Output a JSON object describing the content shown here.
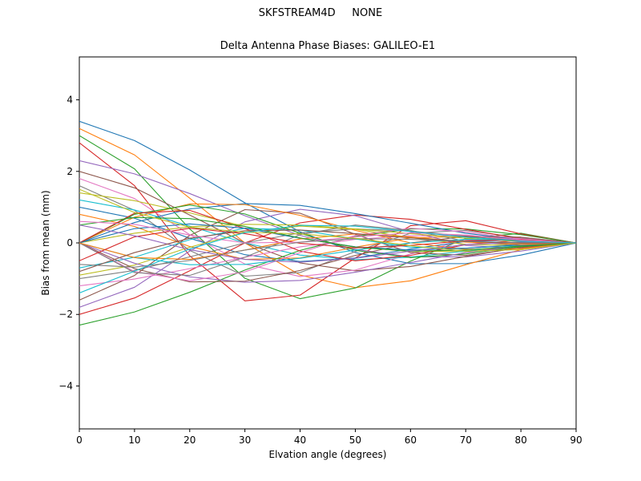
{
  "window": {
    "title": "SKFSTREAM4D     NONE"
  },
  "chart_data": {
    "type": "line",
    "title": "SKFSTREAM4D     NONE",
    "subtitle": "Delta Antenna Phase Biases: GALILEO-E1",
    "xlabel": "Elvation angle (degrees)",
    "ylabel": "Bias from mean (mm)",
    "xlim": [
      0,
      90
    ],
    "ylim": [
      -5.2,
      5.2
    ],
    "xticks": [
      0,
      10,
      20,
      30,
      40,
      50,
      60,
      70,
      80,
      90
    ],
    "yticks": [
      -4,
      -2,
      0,
      2,
      4
    ],
    "grid": false,
    "legend": "none",
    "x": [
      0,
      10,
      20,
      30,
      40,
      50,
      60,
      70,
      80,
      90
    ],
    "series": [
      {
        "name": "s01",
        "color": "#1f77b4",
        "values": [
          3.4,
          2.86,
          2.04,
          1.12,
          0.31,
          -0.27,
          -0.58,
          -0.58,
          -0.34,
          0
        ]
      },
      {
        "name": "s02",
        "color": "#ff7f0e",
        "values": [
          3.2,
          2.46,
          1.25,
          0.0,
          -0.9,
          -1.25,
          -1.06,
          -0.61,
          -0.19,
          0
        ]
      },
      {
        "name": "s03",
        "color": "#2ca02c",
        "values": [
          3.0,
          2.07,
          0.39,
          -0.99,
          -1.56,
          -1.26,
          -0.51,
          0.12,
          0.27,
          0
        ]
      },
      {
        "name": "s04",
        "color": "#d62728",
        "values": [
          2.8,
          1.6,
          -0.36,
          -1.62,
          -1.46,
          -0.42,
          0.48,
          0.62,
          0.25,
          0
        ]
      },
      {
        "name": "s05",
        "color": "#9467bd",
        "values": [
          2.3,
          1.93,
          1.38,
          0.76,
          0.21,
          -0.18,
          -0.39,
          -0.39,
          -0.23,
          0
        ]
      },
      {
        "name": "s06",
        "color": "#8c564b",
        "values": [
          2.0,
          1.54,
          0.78,
          0.0,
          -0.56,
          -0.78,
          -0.66,
          -0.38,
          -0.12,
          0
        ]
      },
      {
        "name": "s07",
        "color": "#e377c2",
        "values": [
          1.8,
          1.24,
          0.23,
          -0.59,
          -0.94,
          -0.76,
          -0.31,
          0.07,
          0.16,
          0
        ]
      },
      {
        "name": "s08",
        "color": "#7f7f7f",
        "values": [
          1.6,
          0.91,
          -0.21,
          -0.93,
          -0.83,
          -0.24,
          0.27,
          0.35,
          0.14,
          0
        ]
      },
      {
        "name": "s09",
        "color": "#bcbd22",
        "values": [
          1.4,
          1.18,
          0.84,
          0.46,
          0.13,
          -0.11,
          -0.24,
          -0.24,
          -0.14,
          0
        ]
      },
      {
        "name": "s10",
        "color": "#17becf",
        "values": [
          1.2,
          0.92,
          0.47,
          0.0,
          -0.34,
          -0.47,
          -0.4,
          -0.23,
          -0.07,
          0
        ]
      },
      {
        "name": "s11",
        "color": "#1f77b4",
        "values": [
          1.0,
          0.69,
          0.13,
          -0.33,
          -0.52,
          -0.42,
          -0.17,
          0.04,
          0.09,
          0
        ]
      },
      {
        "name": "s12",
        "color": "#ff7f0e",
        "values": [
          0.8,
          0.46,
          -0.1,
          -0.46,
          -0.42,
          -0.12,
          0.14,
          0.18,
          0.07,
          0
        ]
      },
      {
        "name": "s13",
        "color": "#2ca02c",
        "values": [
          -2.3,
          -1.93,
          -1.38,
          -0.76,
          -0.21,
          0.18,
          0.39,
          0.39,
          0.23,
          0
        ]
      },
      {
        "name": "s14",
        "color": "#d62728",
        "values": [
          -2.0,
          -1.54,
          -0.78,
          0.0,
          0.56,
          0.78,
          0.66,
          0.38,
          0.12,
          0
        ]
      },
      {
        "name": "s15",
        "color": "#9467bd",
        "values": [
          -1.8,
          -1.24,
          -0.23,
          0.59,
          0.94,
          0.76,
          0.31,
          -0.07,
          -0.16,
          0
        ]
      },
      {
        "name": "s16",
        "color": "#8c564b",
        "values": [
          -1.6,
          -0.91,
          0.21,
          0.93,
          0.83,
          0.24,
          -0.27,
          -0.35,
          -0.14,
          0
        ]
      },
      {
        "name": "s17",
        "color": "#e377c2",
        "values": [
          -1.2,
          -1.01,
          -0.72,
          -0.4,
          -0.11,
          0.1,
          0.2,
          0.2,
          0.12,
          0
        ]
      },
      {
        "name": "s18",
        "color": "#7f7f7f",
        "values": [
          -1.0,
          -0.77,
          -0.39,
          0.0,
          0.28,
          0.39,
          0.33,
          0.19,
          0.06,
          0
        ]
      },
      {
        "name": "s19",
        "color": "#bcbd22",
        "values": [
          -0.9,
          -0.62,
          -0.12,
          0.3,
          0.47,
          0.38,
          0.15,
          -0.04,
          -0.08,
          0
        ]
      },
      {
        "name": "s20",
        "color": "#17becf",
        "values": [
          -0.7,
          -0.4,
          0.09,
          0.41,
          0.36,
          0.11,
          -0.12,
          -0.15,
          -0.06,
          0
        ]
      },
      {
        "name": "s21",
        "color": "#1f77b4",
        "values": [
          0,
          0.57,
          0.95,
          1.1,
          1.05,
          0.82,
          0.55,
          0.27,
          0.08,
          0
        ]
      },
      {
        "name": "s22",
        "color": "#ff7f0e",
        "values": [
          0,
          0.72,
          1.09,
          1.07,
          0.77,
          0.35,
          0.0,
          -0.18,
          -0.16,
          0
        ]
      },
      {
        "name": "s23",
        "color": "#2ca02c",
        "values": [
          0,
          0.8,
          1.06,
          0.81,
          0.27,
          -0.21,
          -0.41,
          -0.31,
          -0.1,
          0
        ]
      },
      {
        "name": "s24",
        "color": "#d62728",
        "values": [
          0,
          0.83,
          0.91,
          0.4,
          -0.23,
          -0.5,
          -0.35,
          -0.05,
          0.08,
          0
        ]
      },
      {
        "name": "s25",
        "color": "#9467bd",
        "values": [
          0,
          -0.57,
          -0.95,
          -1.1,
          -1.05,
          -0.82,
          -0.55,
          -0.27,
          -0.08,
          0
        ]
      },
      {
        "name": "s26",
        "color": "#8c564b",
        "values": [
          0,
          -0.72,
          -1.09,
          -1.07,
          -0.77,
          -0.35,
          0.0,
          0.18,
          0.16,
          0
        ]
      },
      {
        "name": "s27",
        "color": "#e377c2",
        "values": [
          0,
          -0.8,
          -1.06,
          -0.81,
          -0.27,
          0.21,
          0.41,
          0.31,
          0.1,
          0
        ]
      },
      {
        "name": "s28",
        "color": "#7f7f7f",
        "values": [
          0,
          -0.83,
          -0.91,
          -0.4,
          0.23,
          0.5,
          0.35,
          0.05,
          -0.08,
          0
        ]
      },
      {
        "name": "s29",
        "color": "#bcbd22",
        "values": [
          0,
          0.27,
          0.45,
          0.52,
          0.5,
          0.39,
          0.26,
          0.13,
          0.04,
          0
        ]
      },
      {
        "name": "s30",
        "color": "#17becf",
        "values": [
          0,
          -0.41,
          -0.61,
          -0.6,
          -0.43,
          -0.2,
          0.0,
          0.1,
          0.09,
          0
        ]
      },
      {
        "name": "s31",
        "color": "#1f77b4",
        "values": [
          0,
          0.4,
          0.53,
          0.41,
          0.13,
          -0.11,
          -0.2,
          -0.15,
          -0.05,
          0
        ]
      },
      {
        "name": "s32",
        "color": "#ff7f0e",
        "values": [
          0,
          -0.41,
          -0.46,
          -0.2,
          0.11,
          0.25,
          0.17,
          0.02,
          -0.04,
          0
        ]
      },
      {
        "name": "s33",
        "color": "#2ca02c",
        "values": [
          0.5,
          0.71,
          0.68,
          0.46,
          0.14,
          -0.12,
          -0.23,
          -0.2,
          -0.09,
          0
        ]
      },
      {
        "name": "s34",
        "color": "#d62728",
        "values": [
          -0.5,
          0.17,
          0.41,
          0.26,
          -0.01,
          -0.14,
          -0.07,
          0.06,
          0.09,
          0
        ]
      },
      {
        "name": "s35",
        "color": "#9467bd",
        "values": [
          0.5,
          0.2,
          -0.19,
          -0.46,
          -0.54,
          -0.43,
          -0.23,
          -0.05,
          0.03,
          0
        ]
      },
      {
        "name": "s36",
        "color": "#8c564b",
        "values": [
          -0.8,
          -0.27,
          0.13,
          0.34,
          0.36,
          0.26,
          0.14,
          0.04,
          -0.01,
          0
        ]
      },
      {
        "name": "s37",
        "color": "#e377c2",
        "values": [
          0.6,
          0.52,
          0.22,
          0.0,
          0.02,
          0.17,
          0.28,
          0.22,
          0.08,
          0
        ]
      },
      {
        "name": "s38",
        "color": "#7f7f7f",
        "values": [
          -0.6,
          -0.68,
          -0.49,
          -0.2,
          0.02,
          0.12,
          0.1,
          0.04,
          0.01,
          0
        ]
      },
      {
        "name": "s39",
        "color": "#bcbd22",
        "values": [
          1.5,
          0.85,
          0.44,
          0.3,
          0.25,
          0.13,
          -0.08,
          -0.23,
          -0.19,
          0
        ]
      },
      {
        "name": "s40",
        "color": "#17becf",
        "values": [
          -1.4,
          -0.79,
          -0.17,
          0.29,
          0.49,
          0.47,
          0.32,
          0.16,
          0.05,
          0
        ]
      }
    ]
  }
}
